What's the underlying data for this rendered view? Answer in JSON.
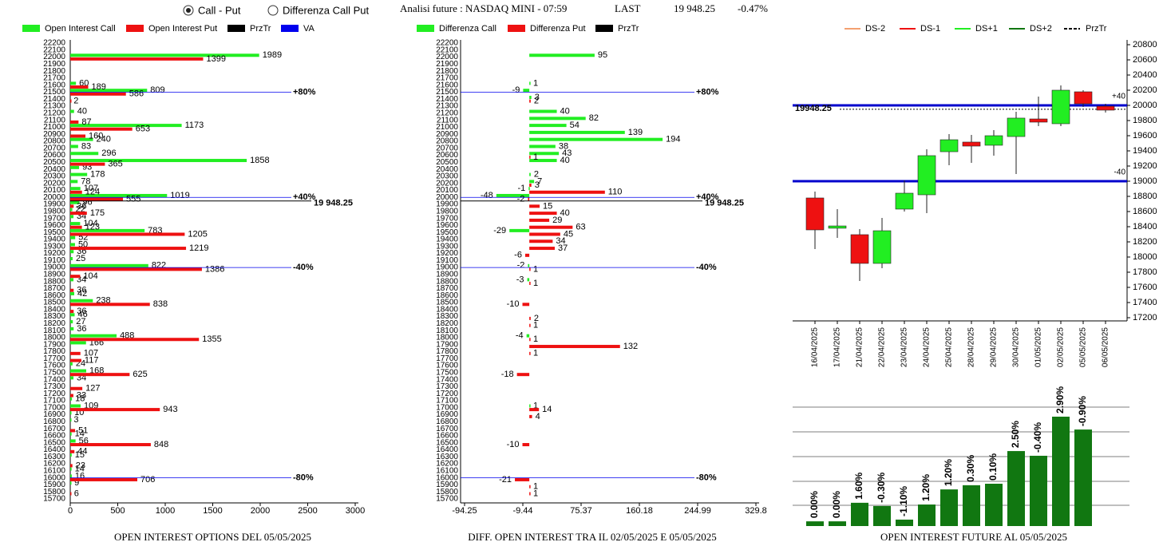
{
  "header": {
    "option_1": "Call - Put",
    "option_2": "Differenza Call Put",
    "title": "Analisi future : NASDAQ MINI - 07:59",
    "last_label": "LAST",
    "last_value": "19 948.25",
    "change": "-0.47%"
  },
  "chart_data": [
    {
      "type": "hbar",
      "title": "OPEN INTEREST OPTIONS DEL 05/05/2025",
      "categories": [
        15700,
        15800,
        15900,
        16000,
        16100,
        16200,
        16300,
        16400,
        16500,
        16600,
        16700,
        16800,
        16900,
        17000,
        17100,
        17200,
        17300,
        17400,
        17500,
        17600,
        17700,
        17800,
        17900,
        18000,
        18100,
        18200,
        18300,
        18400,
        18500,
        18600,
        18700,
        18800,
        18900,
        19000,
        19100,
        19200,
        19300,
        19400,
        19500,
        19600,
        19700,
        19800,
        19900,
        20000,
        20100,
        20200,
        20300,
        20400,
        20500,
        20600,
        20700,
        20800,
        20900,
        21000,
        21100,
        21200,
        21300,
        21400,
        21500,
        21600,
        21700,
        21800,
        21900,
        22000,
        22100,
        22200
      ],
      "series": [
        {
          "name": "Open Interest Call",
          "color": "#22ee22",
          "values": [
            null,
            null,
            9,
            16,
            14,
            null,
            15,
            null,
            56,
            14,
            null,
            3,
            10,
            109,
            18,
            null,
            null,
            34,
            168,
            24,
            null,
            null,
            166,
            488,
            36,
            27,
            46,
            null,
            238,
            42,
            null,
            34,
            null,
            822,
            25,
            36,
            50,
            52,
            783,
            104,
            34,
            22,
            96,
            1019,
            107,
            78,
            178,
            93,
            1858,
            296,
            83,
            240,
            null,
            1173,
            null,
            40,
            null,
            null,
            809,
            60,
            null,
            null,
            null,
            1989,
            null,
            null
          ]
        },
        {
          "name": "Open Interest Put",
          "color": "#ee1111",
          "values": [
            null,
            6,
            null,
            706,
            null,
            23,
            null,
            44,
            848,
            null,
            51,
            null,
            null,
            943,
            null,
            33,
            127,
            null,
            625,
            null,
            117,
            107,
            null,
            1355,
            null,
            null,
            null,
            36,
            838,
            null,
            36,
            null,
            104,
            1386,
            null,
            null,
            1219,
            null,
            1205,
            123,
            null,
            175,
            36,
            555,
            124,
            null,
            null,
            null,
            365,
            null,
            null,
            null,
            160,
            653,
            87,
            null,
            null,
            2,
            586,
            189,
            null,
            null,
            null,
            1399,
            null,
            null
          ]
        }
      ],
      "xlim": [
        0,
        3000
      ],
      "xticks": [
        0,
        500,
        1000,
        1500,
        2000,
        2500,
        3000
      ],
      "price_line": {
        "name": "PrzTr",
        "color": "#000000",
        "value": 19948.25,
        "label": "19 948.25"
      },
      "va_lines": {
        "name": "VA",
        "color": "#0000ee",
        "levels": [
          {
            "value": 21500,
            "label": "+80%"
          },
          {
            "value": 20000,
            "label": "+40%"
          },
          {
            "value": 19000,
            "label": "-40%"
          },
          {
            "value": 16000,
            "label": "-80%"
          }
        ]
      }
    },
    {
      "type": "hbar",
      "title": "DIFF. OPEN INTEREST TRA IL 02/05/2025 E 05/05/2025",
      "categories": [
        15700,
        15800,
        15900,
        16000,
        16100,
        16200,
        16300,
        16400,
        16500,
        16600,
        16700,
        16800,
        16900,
        17000,
        17100,
        17200,
        17300,
        17400,
        17500,
        17600,
        17700,
        17800,
        17900,
        18000,
        18100,
        18200,
        18300,
        18400,
        18500,
        18600,
        18700,
        18800,
        18900,
        19000,
        19100,
        19200,
        19300,
        19400,
        19500,
        19600,
        19700,
        19800,
        19900,
        20000,
        20100,
        20200,
        20300,
        20400,
        20500,
        20600,
        20700,
        20800,
        20900,
        21000,
        21100,
        21200,
        21300,
        21400,
        21500,
        21600,
        21700,
        21800,
        21900,
        22000,
        22100,
        22200
      ],
      "series": [
        {
          "name": "Differenza Call",
          "color": "#22ee22",
          "values": [
            null,
            null,
            null,
            null,
            null,
            null,
            null,
            null,
            null,
            null,
            null,
            null,
            null,
            1,
            null,
            null,
            null,
            null,
            null,
            null,
            null,
            null,
            null,
            -4,
            null,
            null,
            null,
            null,
            null,
            null,
            null,
            -3,
            null,
            -2,
            null,
            null,
            null,
            null,
            -29,
            null,
            null,
            null,
            null,
            -48,
            -1,
            7,
            2,
            null,
            40,
            43,
            38,
            194,
            139,
            54,
            82,
            40,
            null,
            3,
            -9,
            1,
            null,
            null,
            null,
            95,
            null,
            null
          ]
        },
        {
          "name": "Differenza Put",
          "color": "#ee1111",
          "values": [
            null,
            1,
            1,
            -21,
            null,
            null,
            null,
            null,
            -10,
            null,
            null,
            null,
            4,
            14,
            null,
            null,
            null,
            null,
            -18,
            null,
            null,
            1,
            132,
            1,
            null,
            1,
            2,
            null,
            -10,
            null,
            null,
            1,
            null,
            1,
            null,
            -6,
            37,
            34,
            45,
            63,
            29,
            40,
            15,
            -2,
            110,
            3,
            null,
            null,
            null,
            1,
            null,
            null,
            null,
            null,
            null,
            null,
            null,
            2,
            null,
            null,
            null,
            null,
            null,
            null,
            null,
            null
          ]
        }
      ],
      "xlim": [
        -94.25,
        329.8
      ],
      "xticks": [
        -94.25,
        -9.44,
        75.37,
        160.18,
        244.99,
        329.8
      ],
      "price_line": {
        "name": "PrzTr",
        "color": "#000000",
        "value": 19948.25,
        "label": "19 948.25"
      },
      "va_lines": {
        "color": "#0000ee",
        "levels": [
          {
            "value": 21500,
            "label": "+80%"
          },
          {
            "value": 20000,
            "label": "+40%"
          },
          {
            "value": 19000,
            "label": "-40%"
          },
          {
            "value": 16000,
            "label": "-80%"
          }
        ]
      }
    },
    {
      "type": "candlestick",
      "legend": [
        {
          "name": "DS-2",
          "color": "#f4a070"
        },
        {
          "name": "DS-1",
          "color": "#ee1111"
        },
        {
          "name": "DS+1",
          "color": "#22ee22"
        },
        {
          "name": "DS+2",
          "color": "#117711"
        }
      ],
      "categories": [
        "16/04/2025",
        "17/04/2025",
        "21/04/2025",
        "22/04/2025",
        "23/04/2025",
        "24/04/2025",
        "25/04/2025",
        "28/04/2025",
        "29/04/2025",
        "30/04/2025",
        "01/05/2025",
        "02/05/2025",
        "05/05/2025",
        "06/05/2025"
      ],
      "open": [
        18779,
        18380,
        18295,
        17916,
        18632,
        18821,
        19389,
        19516,
        19474,
        19589,
        19821,
        19758,
        20179,
        19989
      ],
      "high": [
        18863,
        18632,
        18368,
        18516,
        19010,
        19421,
        19621,
        19610,
        19674,
        19916,
        20116,
        20263,
        20200,
        20021
      ],
      "low": [
        18105,
        18253,
        17684,
        17853,
        18600,
        18579,
        19210,
        19242,
        19337,
        19095,
        19726,
        19726,
        19979,
        19905
      ],
      "close": [
        18358,
        18410,
        17916,
        18347,
        18842,
        19337,
        19547,
        19463,
        19600,
        19832,
        19779,
        20200,
        20021,
        19937
      ],
      "up_color": "#22ee22",
      "down_color": "#ee1111",
      "ylim": [
        17200,
        20800
      ],
      "yticks": [
        17200,
        17400,
        17600,
        17800,
        18000,
        18200,
        18400,
        18600,
        18800,
        19000,
        19200,
        19400,
        19600,
        19800,
        20000,
        20200,
        20400,
        20600,
        20800
      ],
      "price_line": {
        "name": "PrzTr",
        "color": "#000000",
        "value": 19948.25
      },
      "levels": {
        "color": "#0000cc",
        "items": [
          {
            "value": 20000,
            "label": "+40"
          },
          {
            "value": 19000,
            "label": "-40"
          }
        ]
      }
    },
    {
      "type": "bar",
      "title": "OPEN INTEREST FUTURE AL 05/05/2025",
      "color": "#117711",
      "values": [
        0.19,
        0.19,
        0.94,
        0.81,
        0.26,
        0.87,
        1.48,
        1.65,
        1.71,
        3.03,
        2.84,
        4.42,
        3.9
      ],
      "change_labels": [
        "0.00%",
        "0.00%",
        "1.60%",
        "-0.30%",
        "-1.10%",
        "1.20%",
        "1.20%",
        "0.30%",
        "0.10%",
        "2.50%",
        "-0.40%",
        "2.90%",
        "-0.90%"
      ]
    }
  ]
}
